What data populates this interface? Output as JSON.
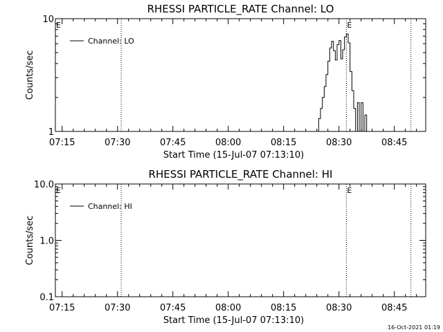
{
  "footer": {
    "timestamp": "16-Oct-2021 01:19"
  },
  "chart_data": [
    {
      "type": "line",
      "title": "RHESSI PARTICLE_RATE Channel: LO",
      "xlabel": "Start Time (15-Jul-07 07:13:10)",
      "ylabel": "Counts/sec",
      "yscale": "log",
      "ylim": [
        1,
        10
      ],
      "yticks": [
        {
          "value": 1,
          "label": "1"
        },
        {
          "value": 10,
          "label": "10"
        }
      ],
      "xlim": [
        "07:13:10",
        "08:53:30"
      ],
      "xticks": [
        "07:15",
        "07:30",
        "07:45",
        "08:00",
        "08:15",
        "08:30",
        "08:45"
      ],
      "legend": {
        "label": "Channel: LO",
        "position": "top-left"
      },
      "markers": [
        {
          "time": "07:31:00",
          "label": ""
        },
        {
          "time": "08:32:00",
          "label": "E"
        },
        {
          "time": "08:49:30",
          "label": ""
        }
      ],
      "edge_marker_label": "E",
      "series": [
        {
          "name": "Channel: LO",
          "x": [
            "08:24:00",
            "08:24:30",
            "08:25:00",
            "08:25:30",
            "08:26:00",
            "08:26:30",
            "08:27:00",
            "08:27:30",
            "08:28:00",
            "08:28:30",
            "08:29:00",
            "08:29:30",
            "08:30:00",
            "08:30:30",
            "08:31:00",
            "08:31:30",
            "08:32:00",
            "08:32:30",
            "08:33:00",
            "08:33:30",
            "08:34:00",
            "08:34:30",
            "08:35:00",
            "08:35:30",
            "08:36:00",
            "08:36:30",
            "08:37:00",
            "08:37:30"
          ],
          "y": [
            1.0,
            1.3,
            1.6,
            2.0,
            2.5,
            3.2,
            4.2,
            5.5,
            6.3,
            5.2,
            4.3,
            5.9,
            6.4,
            4.4,
            5.3,
            6.9,
            7.3,
            6.1,
            3.4,
            2.3,
            1.6,
            1.0,
            1.8,
            1.0,
            1.8,
            1.0,
            1.4,
            1.0
          ]
        }
      ]
    },
    {
      "type": "line",
      "title": "RHESSI PARTICLE_RATE Channel: HI",
      "xlabel": "Start Time (15-Jul-07 07:13:10)",
      "ylabel": "Counts/sec",
      "yscale": "log",
      "ylim": [
        0.1,
        10
      ],
      "yticks": [
        {
          "value": 0.1,
          "label": "0.1"
        },
        {
          "value": 1,
          "label": "1.0"
        },
        {
          "value": 10,
          "label": "10.0"
        }
      ],
      "xlim": [
        "07:13:10",
        "08:53:30"
      ],
      "xticks": [
        "07:15",
        "07:30",
        "07:45",
        "08:00",
        "08:15",
        "08:30",
        "08:45"
      ],
      "legend": {
        "label": "Channel: HI",
        "position": "top-left"
      },
      "markers": [
        {
          "time": "07:31:00",
          "label": ""
        },
        {
          "time": "08:32:00",
          "label": "E"
        },
        {
          "time": "08:49:30",
          "label": ""
        }
      ],
      "edge_marker_label": "E",
      "series": [
        {
          "name": "Channel: HI",
          "x": [],
          "y": []
        }
      ]
    }
  ]
}
